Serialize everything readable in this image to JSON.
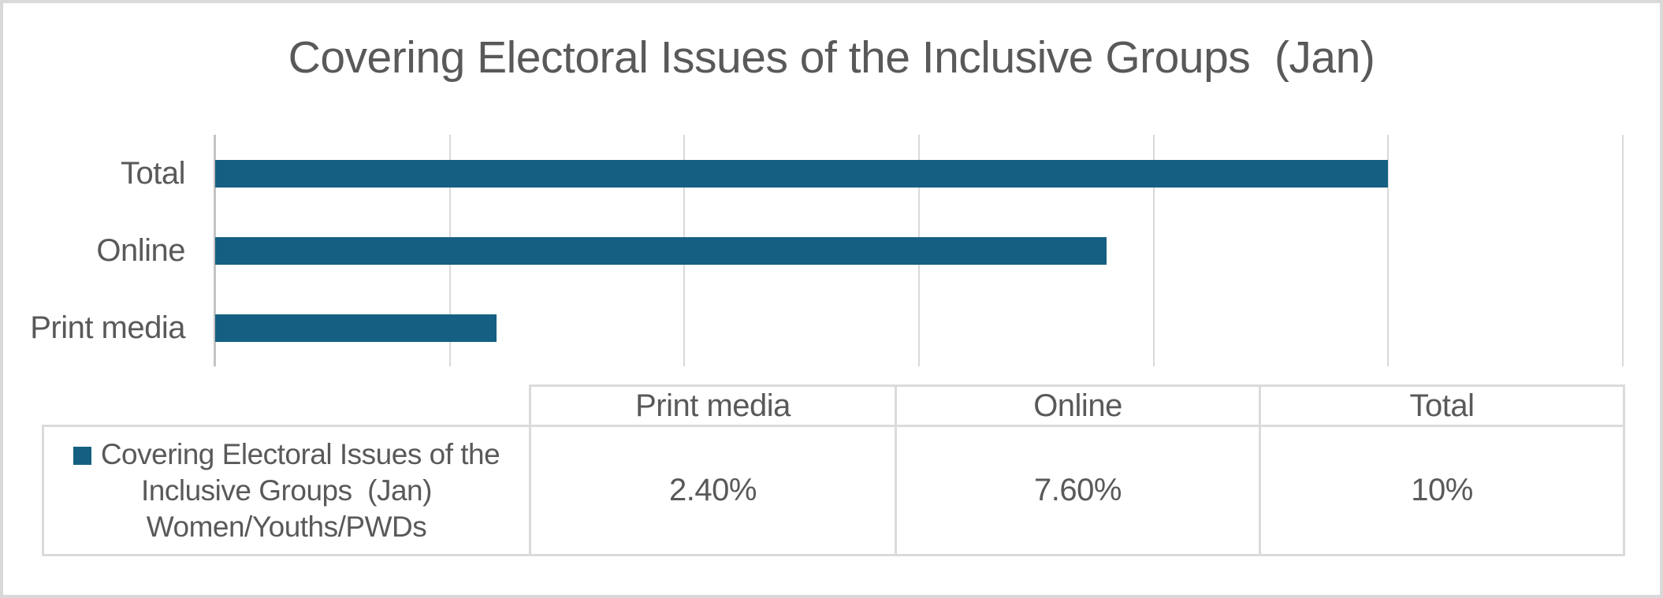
{
  "title": "Covering Electoral Issues of the Inclusive Groups  (Jan)",
  "colors": {
    "bar": "#156082",
    "text": "#595959",
    "gridline": "#d9d9d9",
    "axis_line": "#c4c4c4",
    "table_border": "#dbdbdb",
    "frame_border": "#d9d9d9"
  },
  "chart_data": {
    "type": "bar",
    "orientation": "horizontal",
    "title": "Covering Electoral Issues of the Inclusive Groups  (Jan)",
    "categories": [
      "Total",
      "Online",
      "Print media"
    ],
    "values": [
      10,
      7.6,
      2.4
    ],
    "value_unit": "%",
    "series_name": "Covering Electoral Issues of the Inclusive Groups  (Jan) Women/Youths/PWDs",
    "xlim": [
      0,
      12
    ],
    "gridline_interval": 2,
    "grid": true,
    "axis_value_labels_visible": false,
    "legend_position": "data-table"
  },
  "data_table": {
    "columns": [
      "Print media",
      "Online",
      "Total"
    ],
    "row": {
      "legend_lines": [
        "Covering Electoral Issues of the",
        "Inclusive Groups  (Jan)",
        "Women/Youths/PWDs"
      ],
      "values": [
        "2.40%",
        "7.60%",
        "10%"
      ]
    }
  }
}
